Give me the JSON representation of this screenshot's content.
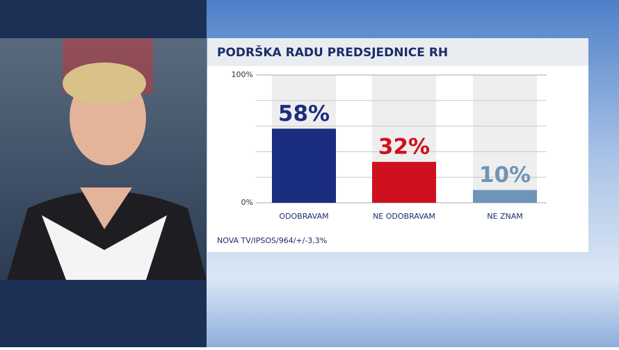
{
  "chart_data": {
    "type": "bar",
    "title": "PODRŠKA RADU PREDSJEDNICE RH",
    "categories": [
      "ODOBRAVAM",
      "NE ODOBRAVAM",
      "NE ZNAM"
    ],
    "values": [
      58,
      32,
      10
    ],
    "value_labels": [
      "58%",
      "32%",
      "10%"
    ],
    "colors": [
      "#1b2d7f",
      "#cf101f",
      "#6f94b7"
    ],
    "ylim": [
      0,
      100
    ],
    "yticks": [
      {
        "value": 0,
        "label": "0%"
      },
      {
        "value": 100,
        "label": "100%"
      }
    ],
    "minor_grid": [
      20,
      40,
      60,
      80
    ],
    "grid": true,
    "source": "NOVA TV/IPSOS/964/+/-3,3%"
  }
}
